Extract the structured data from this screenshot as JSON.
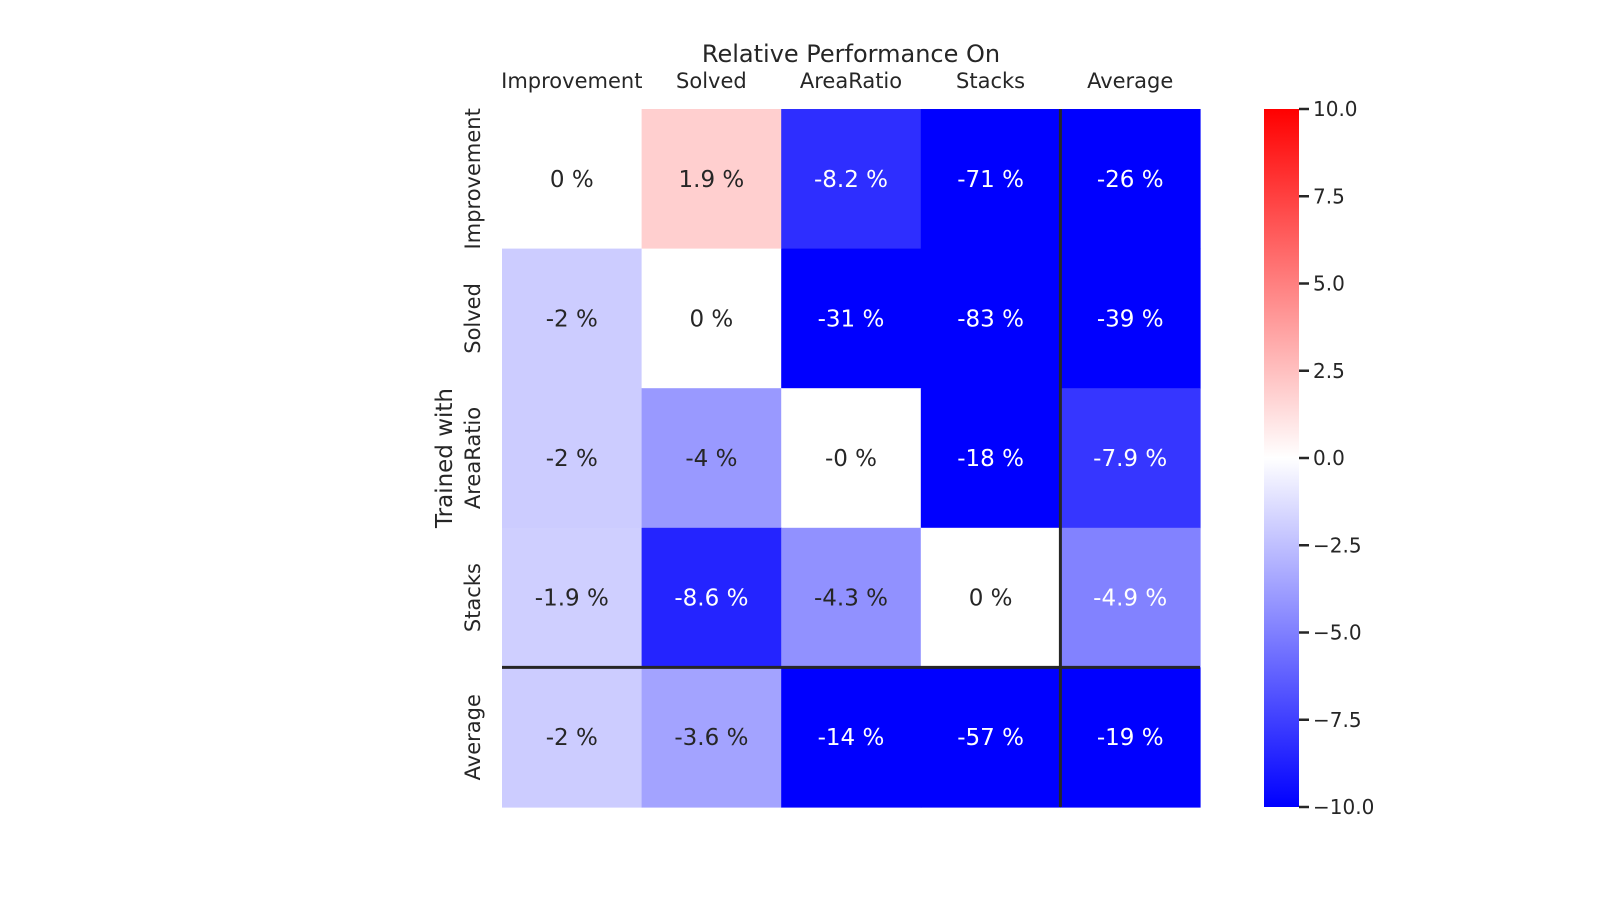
{
  "chart_data": {
    "type": "heatmap",
    "title": "Relative Performance On",
    "xlabel": "Relative Performance On",
    "ylabel": "Trained with",
    "columns": [
      "Improvement",
      "Solved",
      "AreaRatio",
      "Stacks",
      "Average"
    ],
    "rows": [
      "Improvement",
      "Solved",
      "AreaRatio",
      "Stacks",
      "Average"
    ],
    "values": [
      [
        0,
        1.9,
        -8.2,
        -71,
        -26
      ],
      [
        -2,
        0,
        -31,
        -83,
        -39
      ],
      [
        -2,
        -4,
        -0.0,
        -18,
        -7.9
      ],
      [
        -1.9,
        -8.6,
        -4.3,
        0,
        -4.9
      ],
      [
        -2,
        -3.6,
        -14,
        -57,
        -19
      ]
    ],
    "cell_labels": [
      [
        "0 %",
        "1.9 %",
        "-8.2 %",
        "-71 %",
        "-26 %"
      ],
      [
        "-2 %",
        "0 %",
        "-31 %",
        "-83 %",
        "-39 %"
      ],
      [
        "-2 %",
        "-4 %",
        "-0 %",
        "-18 %",
        "-7.9 %"
      ],
      [
        "-1.9 %",
        "-8.6 %",
        "-4.3 %",
        "0 %",
        "-4.9 %"
      ],
      [
        "-2 %",
        "-3.6 %",
        "-14 %",
        "-57 %",
        "-19 %"
      ]
    ],
    "colormap": "bwr",
    "color_low": "#0000ff",
    "color_mid": "#ffffff",
    "color_high": "#ff0000",
    "vmin": -10,
    "vmax": 10,
    "colorbar_ticks": [
      10,
      7.5,
      5,
      2.5,
      0,
      -2.5,
      -5,
      -7.5,
      -10
    ],
    "colorbar_tick_labels": [
      "10.0",
      "7.5",
      "5.0",
      "2.5",
      "0.0",
      "−2.5",
      "−5.0",
      "−7.5",
      "−10.0"
    ],
    "separator_after_row": "Stacks",
    "separator_after_column": "Stacks",
    "grid": false
  }
}
